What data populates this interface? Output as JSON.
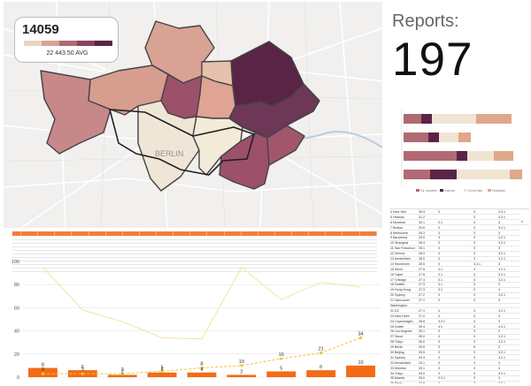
{
  "kpi": {
    "value": "14059",
    "avg": "22 443.50 AVG",
    "scale_colors": [
      "#ecd3c0",
      "#d8a394",
      "#b06a73",
      "#8a4160",
      "#5a2447"
    ]
  },
  "map": {
    "city_label": "BERLIN",
    "district_colors": {
      "reinickendorf": "#d8a394",
      "pankow": "#5a2447",
      "mitte": "#dfa493",
      "friedrichshain": "#6e3657",
      "charlottenburg": "#d79d8e",
      "spandau": "#c78889",
      "steglitz": "#efe6d7",
      "tempelhof": "#f3ead9",
      "neukoelln": "#9c5069",
      "treptow": "#8a4160",
      "lichtenberg": "#a1566b",
      "marzahn": "#5a2447",
      "wedding": "#9c5069"
    }
  },
  "reports": {
    "label": "Reports:",
    "value": "197"
  },
  "stacked_bar": {
    "legend": [
      "Tot. Incidents",
      "Violence",
      "Crime Rate",
      "Population"
    ],
    "colors": [
      "#b06a73",
      "#5a2447",
      "#f1e4d2",
      "#dfa88a"
    ]
  },
  "chart_data": {
    "type": "bar",
    "categories": [
      "1",
      "2",
      "3",
      "4",
      "5",
      "6",
      "7",
      "8",
      "9"
    ],
    "ylim": [
      0,
      100
    ],
    "yticks": [
      "0",
      "20",
      "40",
      "60",
      "80",
      "100"
    ],
    "series": [
      {
        "values": [
          8,
          6,
          2,
          4,
          4,
          2,
          5,
          6,
          10
        ]
      },
      {
        "values": [
          3,
          3,
          3,
          5,
          8,
          10,
          16,
          21,
          34
        ]
      },
      {
        "values": [
          95,
          58,
          48,
          34,
          33,
          95,
          67,
          82,
          78
        ]
      }
    ],
    "bar_labels": [
      "8",
      "6",
      "2",
      "4",
      "4",
      "2",
      "5",
      "6",
      "10"
    ],
    "line_labels": [
      "3",
      "3",
      "3",
      "5",
      "8",
      "10",
      "16",
      "21",
      "34"
    ]
  },
  "city_table": [
    [
      "4 New York",
      "35.3",
      "3",
      "3",
      "3.3.1"
    ],
    [
      "5 Helsinki",
      "31.2",
      "",
      "3",
      "4.3.1"
    ],
    [
      "6 Montreal",
      "30.1",
      "3.1",
      "3",
      "3",
      "4"
    ],
    [
      "7 Boston",
      "29.6",
      "3",
      "3",
      "3.2.1"
    ],
    [
      "8 Melbourne",
      "29.3",
      "3",
      "3",
      "3"
    ],
    [
      "9 Barcelona",
      "29.0",
      "3",
      "3",
      "3.2.1"
    ],
    [
      "10 Shanghai",
      "28.4",
      "3",
      "3",
      "3.2.1"
    ],
    [
      "11 San Francisco",
      "28.1",
      "4",
      "3",
      "3"
    ],
    [
      "12 Vienna",
      "28.0",
      "4",
      "3",
      "3.2.1"
    ],
    [
      "13 Amsterdam",
      "28.0",
      "3",
      "3",
      "3.2.1"
    ],
    [
      "14 Stockholm",
      "28.5",
      "3",
      "3.4.1",
      "3"
    ],
    [
      "15 Seoul",
      "27.8",
      "4.1",
      "3",
      "3.2.1"
    ],
    [
      "16 Taipei",
      "27.6",
      "3.1",
      "3",
      "3.2.1"
    ],
    [
      "17 Chicago",
      "27.4",
      "3.1",
      "3",
      "3.2.1"
    ],
    [
      "18 Seattle",
      "27.3",
      "4.1",
      "3",
      "3"
    ],
    [
      "19 Hong Kong",
      "27.3",
      "3.1",
      "3",
      "4"
    ],
    [
      "20 Sydney",
      "27.2",
      "3",
      "3",
      "3.2.1"
    ],
    [
      "21 Vancouver",
      "27.1",
      "3",
      "3",
      "3"
    ],
    [
      "Washington,",
      "",
      "",
      "",
      ""
    ],
    [
      "22 DC",
      "27.1",
      "4",
      "3",
      "3.2.1"
    ],
    [
      "23 New Delhi",
      "27.0",
      "3",
      "3",
      "3"
    ],
    [
      "24 Copenhagen",
      "26.8",
      "3.3.1",
      "3",
      "3"
    ],
    [
      "25 Dublin",
      "26.4",
      "4.1",
      "3",
      "4.3.1"
    ],
    [
      "26 Los Angeles",
      "26.1",
      "3",
      "3",
      "3"
    ],
    [
      "27 Seoul",
      "26.0",
      "3",
      "3",
      "3.2.1"
    ],
    [
      "28 Tokyo",
      "26.0",
      "3",
      "3",
      "3.2.1"
    ],
    [
      "29 Berlin",
      "25.9",
      "3",
      "6",
      "3"
    ],
    [
      "30 Beijing",
      "25.5",
      "3",
      "3",
      "3.2.1"
    ],
    [
      "31 Sydney",
      "25.3",
      "3",
      "3",
      "3.2.1"
    ],
    [
      "32 Amsterdam",
      "25.1",
      "3",
      "3",
      "3"
    ],
    [
      "33 Mumbai",
      "25.1",
      "3",
      "3",
      "4"
    ],
    [
      "34 Tokyo",
      "25.0",
      "3",
      "3",
      "3.2.1"
    ],
    [
      "35 Atlanta",
      "25.0",
      "3.3.1",
      "3",
      "3"
    ],
    [
      "36 Paris",
      "24.9",
      "3",
      "3",
      "3.2.1"
    ],
    [
      "37 Wellington",
      "24.6",
      "3",
      "3",
      "3"
    ]
  ]
}
